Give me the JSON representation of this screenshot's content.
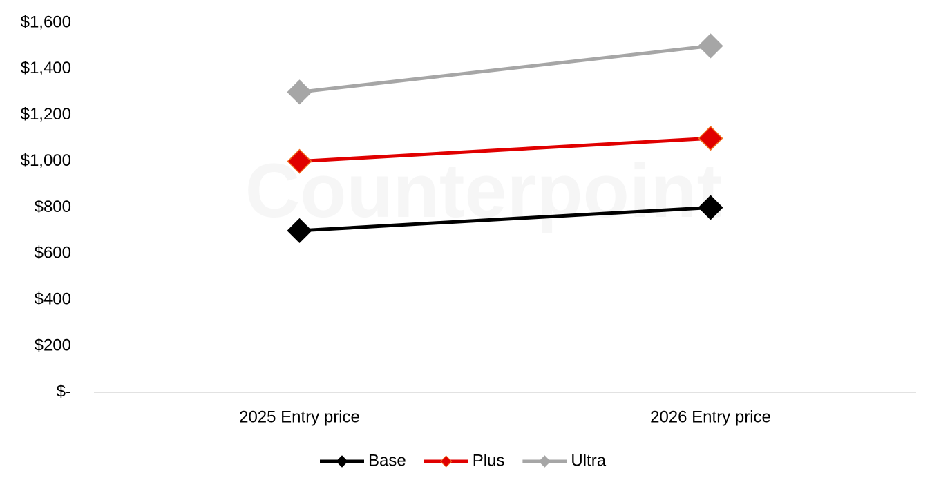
{
  "chart_data": {
    "type": "line",
    "watermark": "Counterpoint",
    "categories": [
      "2025 Entry price",
      "2026 Entry price"
    ],
    "series": [
      {
        "name": "Base",
        "color": "#000000",
        "values": [
          700,
          800
        ]
      },
      {
        "name": "Plus",
        "color": "#e00000",
        "marker_edge": "#f07020",
        "values": [
          1000,
          1100
        ]
      },
      {
        "name": "Ultra",
        "color": "#a6a6a6",
        "values": [
          1300,
          1500
        ]
      }
    ],
    "ylim": [
      0,
      1600
    ],
    "yticks": [
      {
        "value": 0,
        "label": "$-"
      },
      {
        "value": 200,
        "label": "$200"
      },
      {
        "value": 400,
        "label": "$400"
      },
      {
        "value": 600,
        "label": "$600"
      },
      {
        "value": 800,
        "label": "$800"
      },
      {
        "value": 1000,
        "label": "$1,000"
      },
      {
        "value": 1200,
        "label": "$1,200"
      },
      {
        "value": 1400,
        "label": "$1,400"
      },
      {
        "value": 1600,
        "label": "$1,600"
      }
    ],
    "grid": false,
    "legend": "bottom"
  }
}
